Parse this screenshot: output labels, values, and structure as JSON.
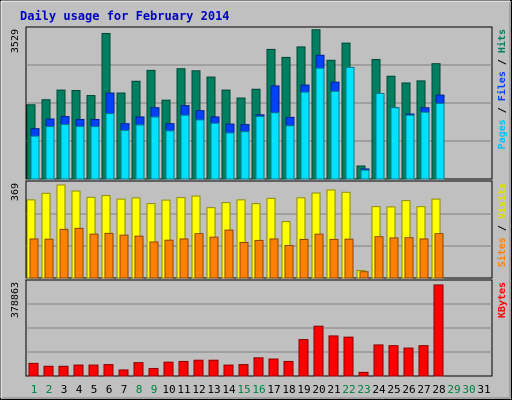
{
  "chart_data": {
    "type": "bar",
    "title": "Daily usage for February 2014",
    "x": [
      1,
      2,
      3,
      4,
      5,
      6,
      7,
      8,
      9,
      10,
      11,
      12,
      13,
      14,
      15,
      16,
      17,
      18,
      19,
      20,
      21,
      22,
      23,
      24,
      25,
      26,
      27,
      28,
      29,
      30,
      31
    ],
    "x_label_colors": [
      "#008040",
      "#008040",
      "#000000",
      "#000000",
      "#000000",
      "#000000",
      "#000000",
      "#008040",
      "#008040",
      "#000000",
      "#000000",
      "#000000",
      "#000000",
      "#000000",
      "#008040",
      "#008040",
      "#000000",
      "#000000",
      "#000000",
      "#000000",
      "#000000",
      "#008040",
      "#008040",
      "#000000",
      "#000000",
      "#000000",
      "#000000",
      "#000000",
      "#008040",
      "#008040",
      "#000000"
    ],
    "panels": [
      {
        "id": "hits",
        "max_label": "3529",
        "ylim": [
          0,
          3529
        ],
        "right_labels": [
          {
            "text": "Pages",
            "color": "#00c0ff"
          },
          {
            "text": " / ",
            "color": "#000000"
          },
          {
            "text": "Files",
            "color": "#0040ff"
          },
          {
            "text": " / ",
            "color": "#000000"
          },
          {
            "text": "Hits",
            "color": "#008060"
          }
        ],
        "series": [
          {
            "name": "Hits",
            "color": "#008060",
            "values": [
              1770,
              1890,
              2120,
              2110,
              1990,
              3470,
              2050,
              2330,
              2590,
              1880,
              2630,
              2580,
              2430,
              2120,
              1930,
              2140,
              3090,
              2900,
              3150,
              3560,
              2830,
              3240,
              310,
              2850,
              2450,
              2290,
              2340,
              2750,
              0,
              0,
              0
            ]
          },
          {
            "name": "Files",
            "color": "#0040ff",
            "values": [
              1200,
              1430,
              1490,
              1420,
              1420,
              2050,
              1320,
              1480,
              1700,
              1320,
              1750,
              1630,
              1480,
              1310,
              1300,
              1530,
              2220,
              1470,
              2240,
              2950,
              2310,
              2440,
              240,
              1900,
              1700,
              1550,
              1700,
              2000,
              0,
              0,
              0
            ]
          },
          {
            "name": "Pages",
            "color": "#00e0ff",
            "values": [
              1020,
              1250,
              1300,
              1250,
              1250,
              1560,
              1160,
              1290,
              1480,
              1150,
              1520,
              1410,
              1330,
              1100,
              1130,
              1490,
              1580,
              1270,
              2070,
              2640,
              2090,
              2660,
              210,
              2040,
              1700,
              1520,
              1590,
              1800,
              0,
              0,
              0
            ]
          }
        ]
      },
      {
        "id": "visits",
        "max_label": "369",
        "ylim": [
          0,
          369
        ],
        "right_labels": [
          {
            "text": "Sites",
            "color": "#ff8000"
          },
          {
            "text": " / ",
            "color": "#000000"
          },
          {
            "text": "Visits",
            "color": "#e0e000"
          }
        ],
        "series": [
          {
            "name": "Visits",
            "color": "#ffff00",
            "values": [
              310,
              336,
              369,
              345,
              320,
              327,
              313,
              318,
              295,
              309,
              319,
              325,
              279,
              299,
              310,
              295,
              316,
              224,
              318,
              337,
              349,
              340,
              30,
              283,
              282,
              307,
              283,
              313,
              0,
              0,
              0
            ]
          },
          {
            "name": "Sites",
            "color": "#ff8000",
            "values": [
              155,
              154,
              193,
              197,
              174,
              177,
              170,
              166,
              143,
              150,
              155,
              176,
              162,
              190,
              141,
              149,
              155,
              129,
              153,
              174,
              153,
              154,
              25,
              164,
              159,
              160,
              155,
              176,
              0,
              0,
              0
            ]
          }
        ]
      },
      {
        "id": "kbytes",
        "max_label": "378863",
        "ylim": [
          0,
          378863
        ],
        "right_labels": [
          {
            "text": "KBytes",
            "color": "#ff0000"
          }
        ],
        "series": [
          {
            "name": "KBytes",
            "color": "#ff0000",
            "values": [
              52000,
              40000,
              40000,
              45000,
              45000,
              47000,
              25000,
              55000,
              31000,
              57000,
              60000,
              65000,
              65000,
              45000,
              47000,
              75000,
              70000,
              60000,
              150000,
              205000,
              165000,
              160000,
              15000,
              128000,
              125000,
              115000,
              125000,
              375000,
              0,
              0,
              0
            ]
          }
        ]
      }
    ]
  }
}
